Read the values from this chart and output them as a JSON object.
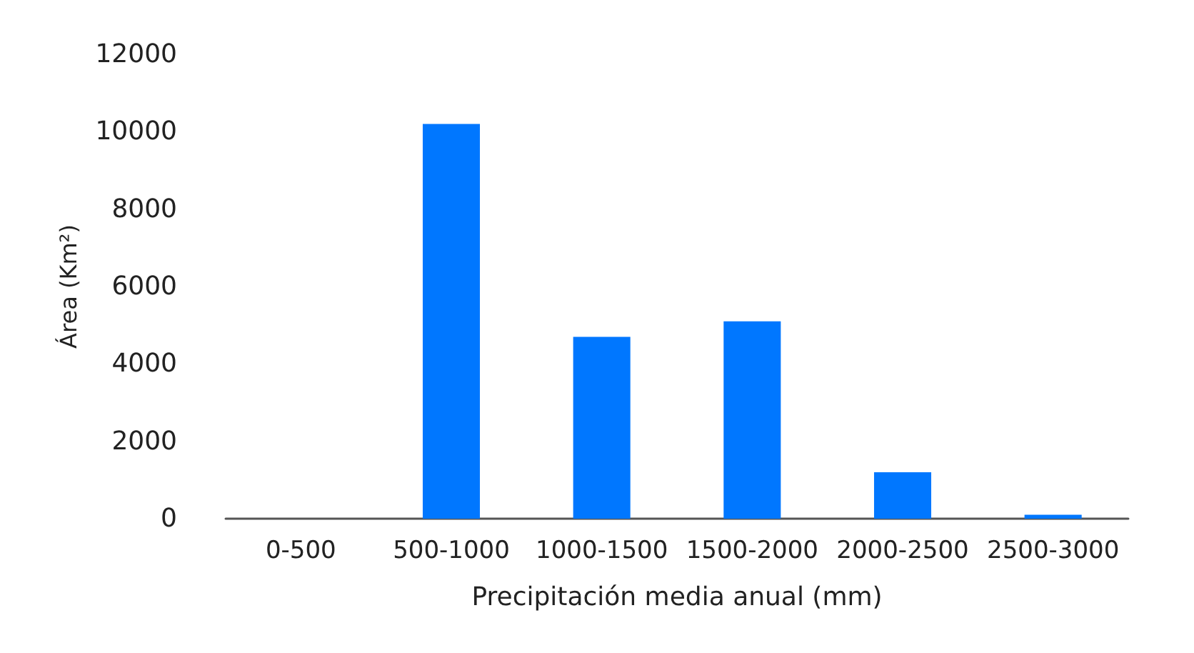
{
  "chart_data": {
    "type": "bar",
    "xlabel": "Precipitación media anual (mm)",
    "ylabel": "Área (Km²)",
    "categories": [
      "0-500",
      "500-1000",
      "1000-1500",
      "1500-2000",
      "2000-2500",
      "2500-3000"
    ],
    "values": [
      0,
      10200,
      4700,
      5100,
      1200,
      100
    ],
    "color": "#0077ff",
    "ylim": [
      0,
      12000
    ],
    "yticks": [
      0,
      2000,
      4000,
      6000,
      8000,
      10000,
      12000
    ],
    "grid": false
  }
}
